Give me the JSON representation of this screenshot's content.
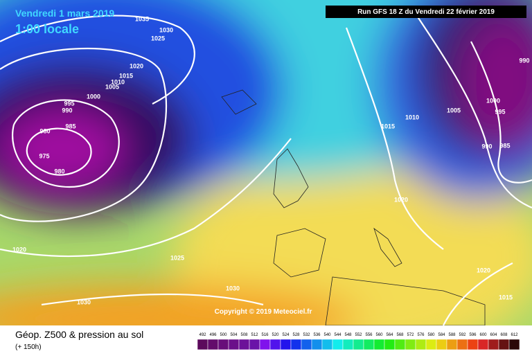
{
  "header": {
    "valid_date": "Vendredi 1 mars 2019",
    "local_time": "1:00 locale",
    "run": "Run GFS 18 Z du Vendredi 22 février 2019"
  },
  "isobar_labels": [
    "1035",
    "1030",
    "1025",
    "1020",
    "1015",
    "1010",
    "1005",
    "1000",
    "995",
    "990",
    "985",
    "980",
    "975",
    "980",
    "1020",
    "1025",
    "1030",
    "1030",
    "1015",
    "1010",
    "1005",
    "1000",
    "995",
    "990",
    "985",
    "990",
    "1020",
    "1020",
    "1015"
  ],
  "copyright": "Copyright © 2019 Meteociel.fr",
  "footer": {
    "title": "Géop. Z500 & pression au sol",
    "lead_time": "(+ 150h)"
  },
  "color_scale": [
    492,
    496,
    500,
    504,
    508,
    512,
    516,
    520,
    524,
    528,
    532,
    536,
    540,
    544,
    548,
    552,
    556,
    560,
    564,
    568,
    572,
    576,
    580,
    584,
    588,
    592,
    596,
    600,
    604,
    608,
    612
  ]
}
